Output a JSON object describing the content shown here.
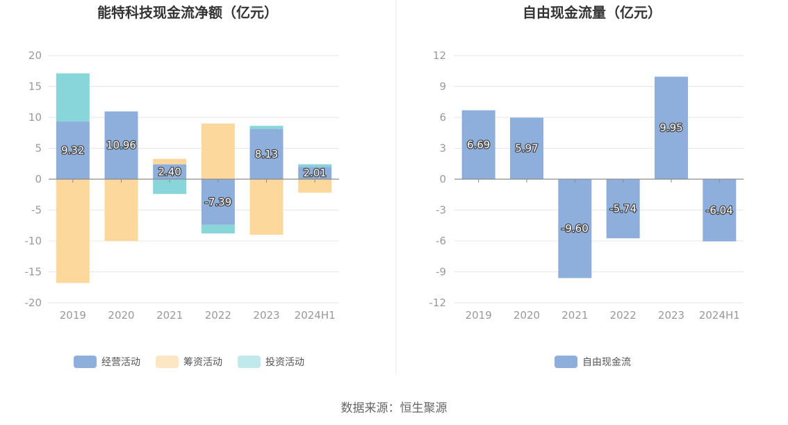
{
  "source_text": "数据来源：恒生聚源",
  "chart_data": [
    {
      "type": "bar",
      "stacked": true,
      "title": "能特科技现金流净额（亿元）",
      "categories": [
        "2019",
        "2020",
        "2021",
        "2022",
        "2023",
        "2024H1"
      ],
      "ylim": [
        -20,
        20
      ],
      "yticks": [
        20,
        15,
        10,
        5,
        0,
        -5,
        -10,
        -15,
        -20
      ],
      "grid": true,
      "legend_position": "bottom",
      "series": [
        {
          "name": "经营活动",
          "color": "#8eaedb",
          "values": [
            9.32,
            10.96,
            2.4,
            -7.39,
            8.13,
            2.01
          ]
        },
        {
          "name": "筹资活动",
          "color": "#fdd89d",
          "values": [
            -16.8,
            -10.0,
            0.9,
            9.0,
            -9.0,
            -2.2
          ]
        },
        {
          "name": "投资活动",
          "color": "#88d6d9",
          "values": [
            7.8,
            0,
            -2.4,
            -1.4,
            0.5,
            0.4
          ]
        }
      ],
      "legend_colors": [
        "#8eaedb",
        "#fde6c4",
        "#c0e9eb"
      ],
      "data_labels": [
        "9.32",
        "10.96",
        "2.40",
        "-7.39",
        "8.13",
        "2.01"
      ]
    },
    {
      "type": "bar",
      "title": "自由现金流量（亿元）",
      "categories": [
        "2019",
        "2020",
        "2021",
        "2022",
        "2023",
        "2024H1"
      ],
      "ylim": [
        -12,
        12
      ],
      "yticks": [
        12,
        9,
        6,
        3,
        0,
        -3,
        -6,
        -9,
        -12
      ],
      "grid": true,
      "legend_position": "bottom",
      "series": [
        {
          "name": "自由现金流",
          "color": "#8eaedb",
          "values": [
            6.69,
            5.97,
            -9.6,
            -5.74,
            9.95,
            -6.04
          ]
        }
      ],
      "legend_colors": [
        "#8eaedb"
      ],
      "data_labels": [
        "6.69",
        "5.97",
        "-9.60",
        "-5.74",
        "9.95",
        "-6.04"
      ]
    }
  ]
}
